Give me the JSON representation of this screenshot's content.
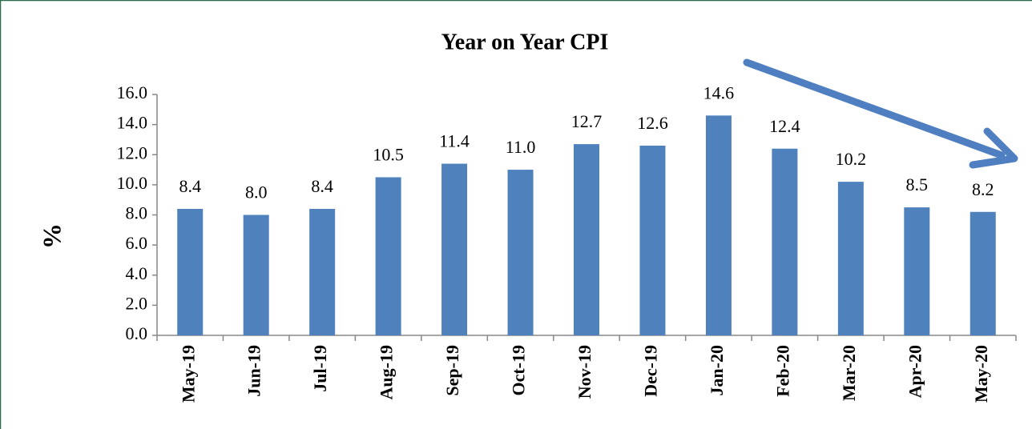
{
  "chart_data": {
    "type": "bar",
    "title": "Year on Year CPI",
    "y_label": "%",
    "categories": [
      "May-19",
      "Jun-19",
      "Jul-19",
      "Aug-19",
      "Sep-19",
      "Oct-19",
      "Nov-19",
      "Dec-19",
      "Jan-20",
      "Feb-20",
      "Mar-20",
      "Apr-20",
      "May-20"
    ],
    "values": [
      8.4,
      8.0,
      8.4,
      10.5,
      11.4,
      11.0,
      12.7,
      12.6,
      14.6,
      12.4,
      10.2,
      8.5,
      8.2
    ],
    "value_labels": [
      "8.4",
      "8.0",
      "8.4",
      "10.5",
      "11.4",
      "11.0",
      "12.7",
      "12.6",
      "14.6",
      "12.4",
      "10.2",
      "8.5",
      "8.2"
    ],
    "color": "#4f81bd",
    "ylim": [
      0,
      16
    ],
    "yticks": [
      {
        "value": 0,
        "label": "0.0"
      },
      {
        "value": 2,
        "label": "2.0"
      },
      {
        "value": 4,
        "label": "4.0"
      },
      {
        "value": 6,
        "label": "6.0"
      },
      {
        "value": 8,
        "label": "8.0"
      },
      {
        "value": 10,
        "label": "10.0"
      },
      {
        "value": 12,
        "label": "12.0"
      },
      {
        "value": 14,
        "label": "14.0"
      },
      {
        "value": 16,
        "label": "16.0"
      }
    ],
    "grid": false
  }
}
